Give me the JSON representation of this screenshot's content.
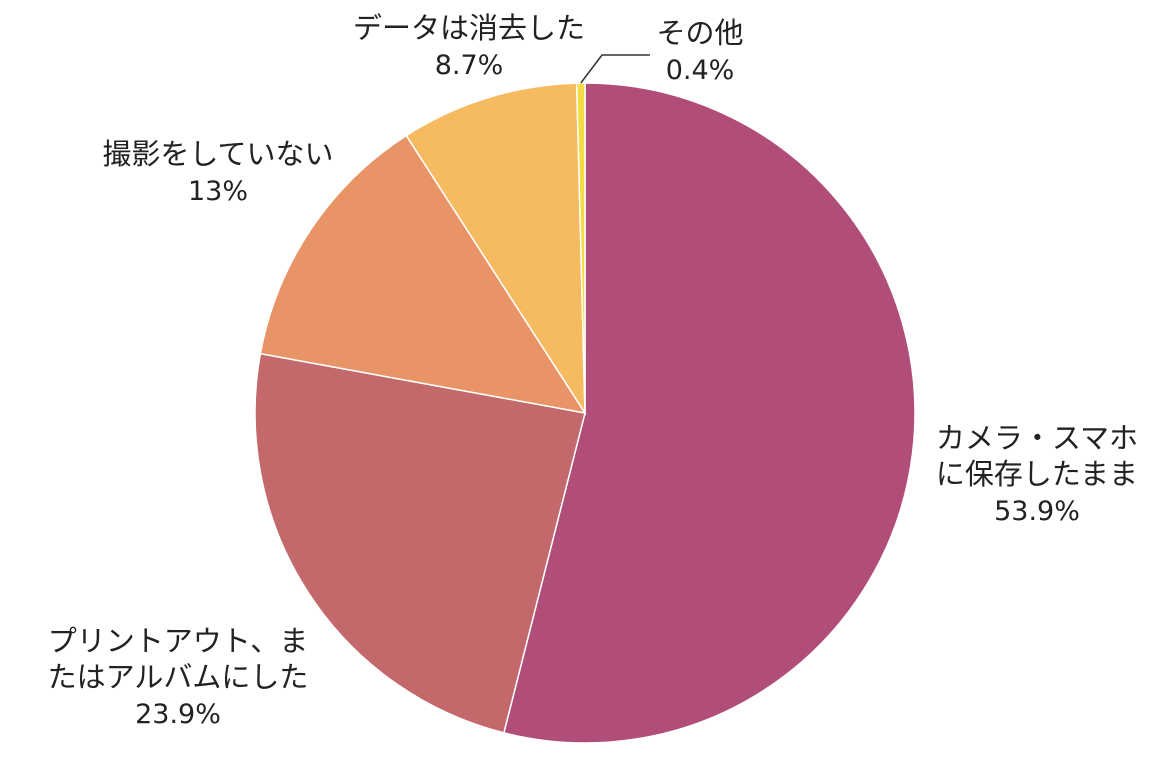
{
  "chart_data": {
    "type": "pie",
    "title": "",
    "start_angle_deg": 0,
    "direction": "clockwise",
    "slices": [
      {
        "label": [
          "カメラ・スマホ",
          "に保存したまま"
        ],
        "value": 53.9,
        "value_label": "53.9%",
        "color": "#b04e79"
      },
      {
        "label": [
          "プリントアウト、ま",
          "たはアルバムにした"
        ],
        "value": 23.9,
        "value_label": "23.9%",
        "color": "#c3696c"
      },
      {
        "label": [
          "撮影をしていない"
        ],
        "value": 13,
        "value_label": "13%",
        "color": "#e99467"
      },
      {
        "label": [
          "データは消去した"
        ],
        "value": 8.7,
        "value_label": "8.7%",
        "color": "#f6bb61"
      },
      {
        "label": [
          "その他"
        ],
        "value": 0.4,
        "value_label": "0.4%",
        "color": "#f3dc43"
      }
    ]
  }
}
